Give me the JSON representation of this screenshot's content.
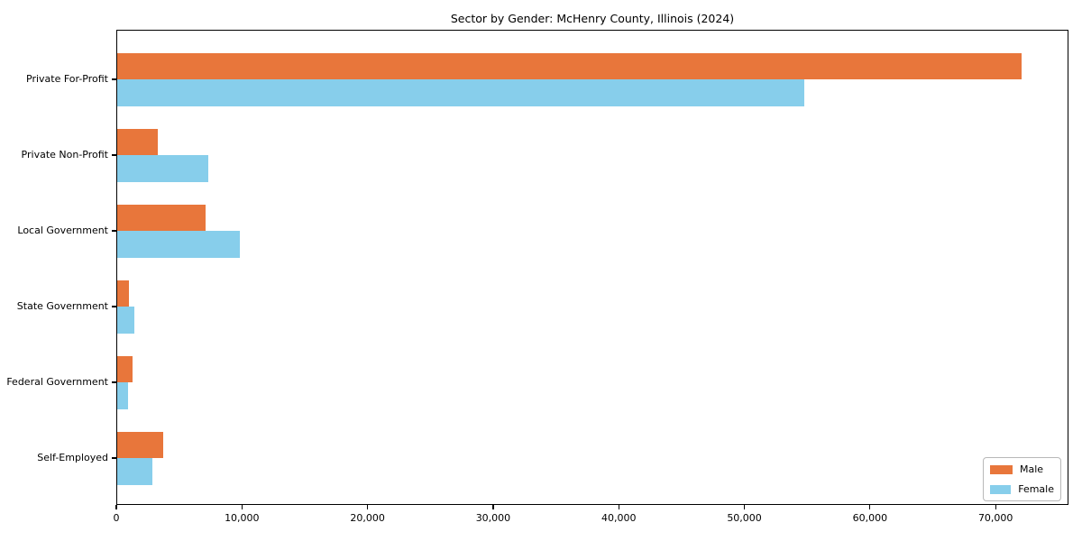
{
  "chart_data": {
    "type": "bar",
    "orientation": "horizontal",
    "title": "Sector by Gender: McHenry County, Illinois (2024)",
    "xlabel": "",
    "ylabel": "",
    "categories": [
      "Private For-Profit",
      "Private Non-Profit",
      "Local Government",
      "State Government",
      "Federal Government",
      "Self-Employed"
    ],
    "series": [
      {
        "name": "Male",
        "color": "#e8763b",
        "values": [
          72100,
          3300,
          7100,
          1000,
          1300,
          3700
        ]
      },
      {
        "name": "Female",
        "color": "#87ceeb",
        "values": [
          54800,
          7300,
          9800,
          1450,
          950,
          2900
        ]
      }
    ],
    "xlim": [
      0,
      75800
    ],
    "x_tick_values": [
      0,
      10000,
      20000,
      30000,
      40000,
      50000,
      60000,
      70000
    ],
    "x_tick_labels": [
      "0",
      "10,000",
      "20,000",
      "30,000",
      "40,000",
      "50,000",
      "60,000",
      "70,000"
    ],
    "grid": false,
    "legend_position": "lower right"
  }
}
